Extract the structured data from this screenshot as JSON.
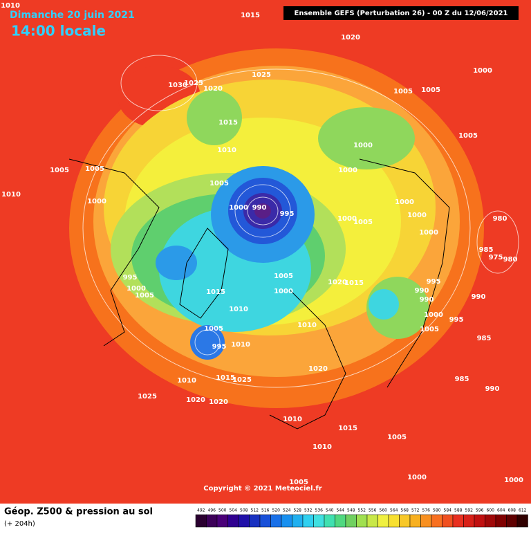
{
  "header": {
    "date": "Dimanche 20 juin 2021",
    "time": "14:00 locale",
    "model": "Ensemble GEFS  (Perturbation 26)  -  00 Z du 12/06/2021"
  },
  "copyright": "Copyright © 2021 Meteociel.fr",
  "legend": {
    "title": "Géop. Z500 & pression au sol",
    "subtitle": "(+ 204h)",
    "scale": [
      492,
      496,
      500,
      504,
      508,
      512,
      516,
      520,
      524,
      528,
      532,
      536,
      540,
      544,
      548,
      552,
      556,
      560,
      564,
      568,
      572,
      576,
      580,
      584,
      588,
      592,
      596,
      600,
      604,
      608,
      612
    ]
  },
  "isobar_labels": [
    1010,
    1015,
    1020,
    1025,
    1030,
    1025,
    1020,
    1005,
    1005,
    1000,
    1015,
    1005,
    1000,
    1010,
    1005,
    1005,
    1000,
    1010,
    1000,
    1005,
    1000,
    1000,
    990,
    995,
    1000,
    1005,
    1000,
    1000,
    980,
    985,
    975,
    980,
    995,
    1000,
    1005,
    1005,
    1000,
    1020,
    1015,
    995,
    990,
    990,
    990,
    1015,
    1010,
    1000,
    995,
    1010,
    1005,
    985,
    1005,
    995,
    1010,
    1020,
    1010,
    1015,
    1025,
    985,
    990,
    1025,
    1020,
    1020,
    1010,
    1015,
    1005,
    1010,
    1000,
    1005,
    1000
  ]
}
